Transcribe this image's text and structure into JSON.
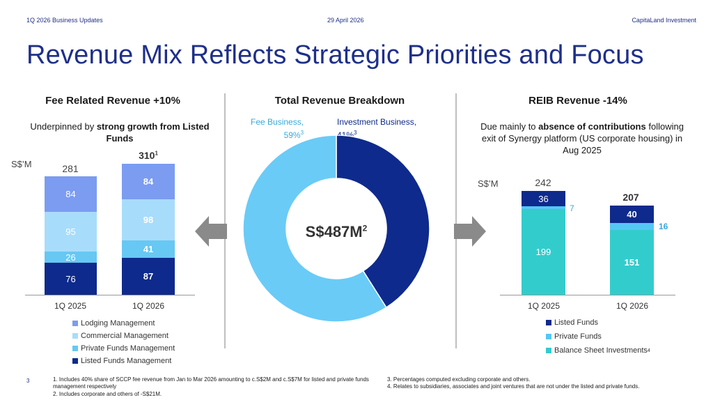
{
  "header": {
    "left": "1Q 2026 Business Updates",
    "center": "29 April 2026",
    "right": "CapitaLand Investment"
  },
  "title": "Revenue Mix Reflects Strategic Priorities and Focus",
  "page_number": "3",
  "left_panel": {
    "title": "Fee Related Revenue +10%",
    "subtitle_pre": "Underpinned by ",
    "subtitle_bold": "strong growth from Listed Funds",
    "unit": "S$’M",
    "totals": [
      "281",
      "310"
    ],
    "total_2_footnote": "1",
    "colors": {
      "lodging": "#7b9cf0",
      "commercial": "#a8dcfb",
      "private": "#66c8f3",
      "listed": "#0e2a8c"
    },
    "legend": [
      "Lodging Management",
      "Commercial Management",
      "Private Funds Management",
      "Listed Funds Management"
    ]
  },
  "middle_panel": {
    "title": "Total Revenue Breakdown",
    "fee_label_line1": "Fee Business,",
    "fee_label_line2": "59%",
    "fee_label_fn": "3",
    "inv_label_line1": "Investment Business,",
    "inv_label_line2": "41%",
    "inv_label_fn": "3",
    "center_value": "S$487M",
    "center_fn": "2",
    "colors": {
      "fee": "#6acbf7",
      "investment": "#0e2a8c"
    }
  },
  "right_panel": {
    "title": "REIB Revenue -14%",
    "subtitle_pre": "Due mainly to ",
    "subtitle_bold": "absence of contributions",
    "subtitle_post": " following exit of Synergy platform (US corporate housing) in Aug 2025",
    "unit": "S$’M",
    "totals": [
      "242",
      "207"
    ],
    "colors": {
      "listed": "#0e2a8c",
      "private": "#55c7f5",
      "balance": "#33cccc"
    },
    "legend": [
      "Listed Funds",
      "Private Funds",
      "Balance Sheet Investments"
    ],
    "legend_fn": "4"
  },
  "chart_data": [
    {
      "type": "bar",
      "stacked": true,
      "categories": [
        "1Q 2025",
        "1Q 2026"
      ],
      "series": [
        {
          "name": "Listed Funds Management",
          "values": [
            76,
            87
          ]
        },
        {
          "name": "Private Funds Management",
          "values": [
            26,
            41
          ]
        },
        {
          "name": "Commercial Management",
          "values": [
            95,
            98
          ]
        },
        {
          "name": "Lodging Management",
          "values": [
            84,
            84
          ]
        }
      ],
      "totals": [
        281,
        310
      ],
      "title": "Fee Related Revenue +10%",
      "ylabel": "S$’M"
    },
    {
      "type": "pie",
      "donut": true,
      "labels": [
        "Fee Business",
        "Investment Business"
      ],
      "values": [
        59,
        41
      ],
      "title": "Total Revenue Breakdown",
      "center_text": "S$487M"
    },
    {
      "type": "bar",
      "stacked": true,
      "categories": [
        "1Q 2025",
        "1Q 2026"
      ],
      "series": [
        {
          "name": "Balance Sheet Investments",
          "values": [
            199,
            151
          ]
        },
        {
          "name": "Private Funds",
          "values": [
            7,
            16
          ]
        },
        {
          "name": "Listed Funds",
          "values": [
            36,
            40
          ]
        }
      ],
      "totals": [
        242,
        207
      ],
      "title": "REIB Revenue -14%",
      "ylabel": "S$’M"
    }
  ],
  "footnotes": [
    {
      "n": "1.",
      "text": "Includes 40% share of SCCP fee revenue from Jan to Mar 2026 amounting to c.S$2M and c.S$7M for listed and private funds management respectively"
    },
    {
      "n": "2.",
      "text": "Includes corporate and others of -S$21M."
    },
    {
      "n": "3.",
      "text": "Percentages computed excluding corporate and others."
    },
    {
      "n": "4.",
      "text": "Relates to subsidiaries, associates and joint ventures that are not under the listed and private funds."
    }
  ]
}
